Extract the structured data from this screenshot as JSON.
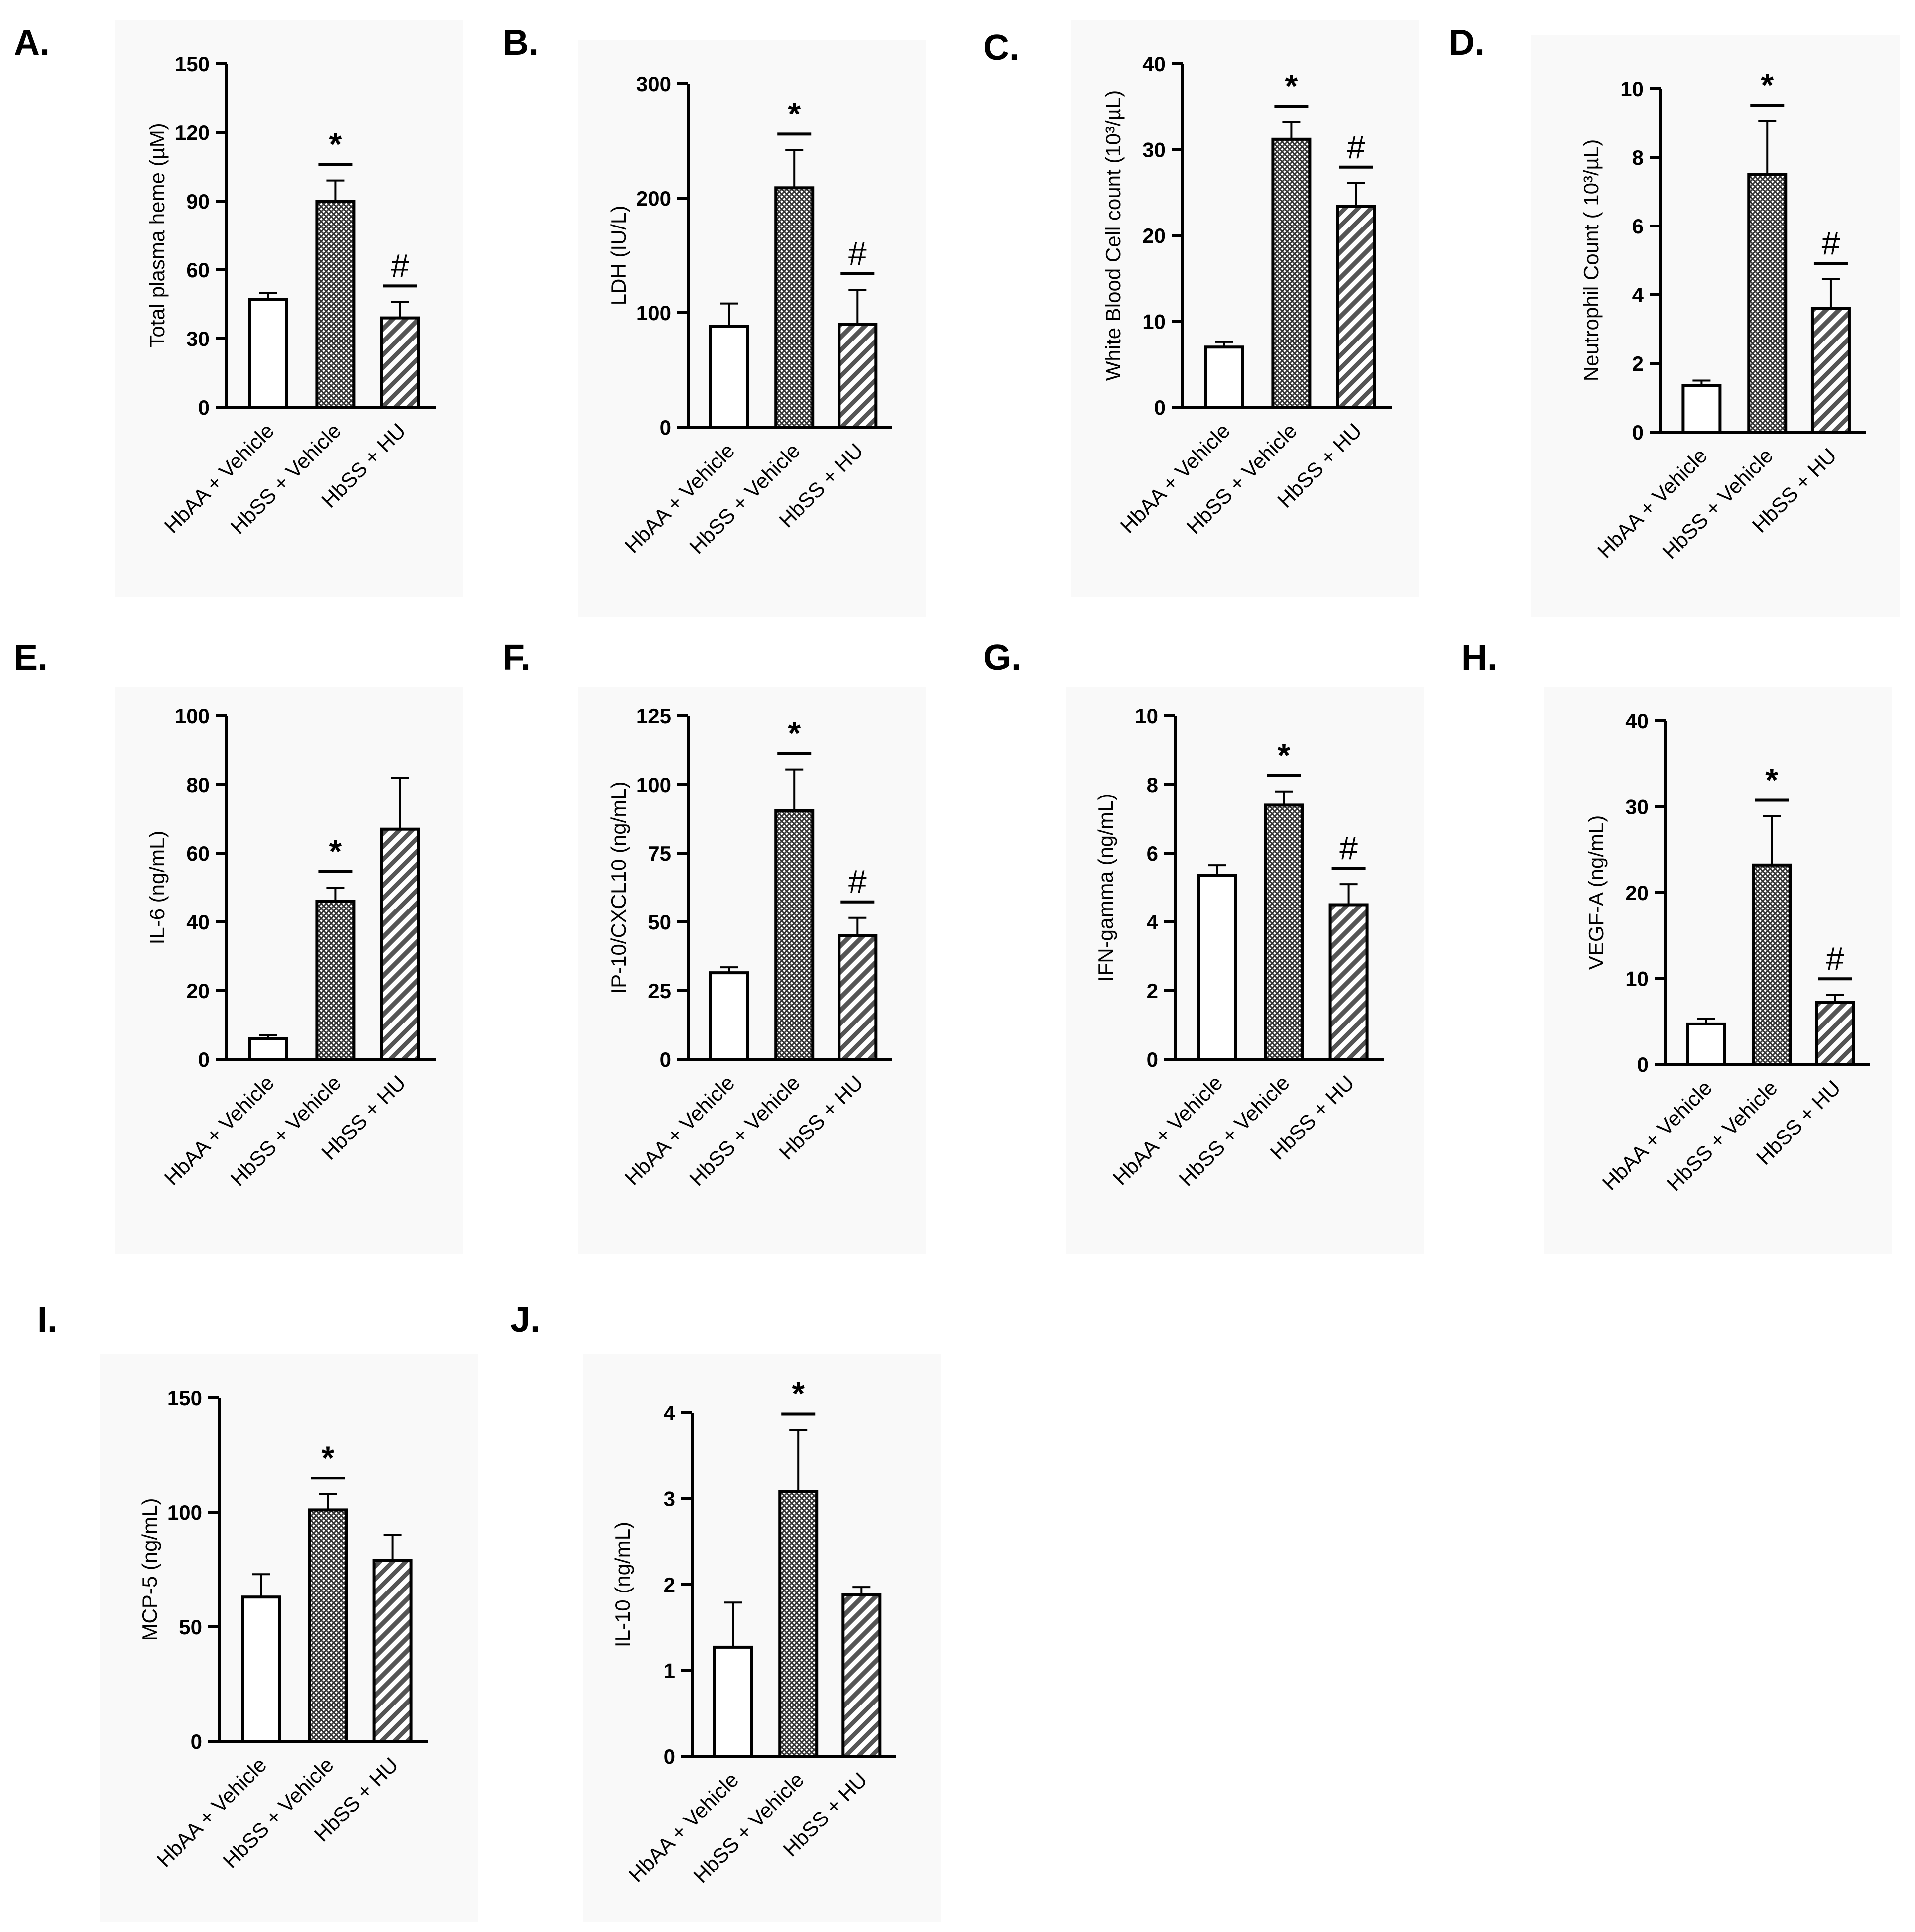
{
  "groups": [
    "HbAA + Vehicle",
    "HbSS + Vehicle",
    "HbSS + HU"
  ],
  "patterns": [
    "open",
    "crosshatch",
    "diagonal"
  ],
  "chart_data": [
    {
      "panel": "A.",
      "type": "bar",
      "ylabel": "Total plasma heme (µM)",
      "ylim": [
        0,
        150
      ],
      "yticks": [
        0,
        30,
        60,
        90,
        120,
        150
      ],
      "categories": [
        "HbAA + Vehicle",
        "HbSS + Vehicle",
        "HbSS + HU"
      ],
      "values": [
        47,
        90,
        39
      ],
      "errors": [
        3,
        9,
        7
      ],
      "significance": [
        "",
        "*",
        "#"
      ]
    },
    {
      "panel": "B.",
      "type": "bar",
      "ylabel": "LDH (IU/L)",
      "ylim": [
        0,
        300
      ],
      "yticks": [
        0,
        100,
        200,
        300
      ],
      "categories": [
        "HbAA + Vehicle",
        "HbSS + Vehicle",
        "HbSS + HU"
      ],
      "values": [
        88,
        209,
        90
      ],
      "errors": [
        20,
        33,
        30
      ],
      "significance": [
        "",
        "*",
        "#"
      ]
    },
    {
      "panel": "C.",
      "type": "bar",
      "ylabel": "White Blood Cell count (10³/µL)",
      "ylim": [
        0,
        40
      ],
      "yticks": [
        0,
        10,
        20,
        30,
        40
      ],
      "categories": [
        "HbAA + Vehicle",
        "HbSS + Vehicle",
        "HbSS + HU"
      ],
      "values": [
        7,
        31.2,
        23.4
      ],
      "errors": [
        0.6,
        2,
        2.7
      ],
      "significance": [
        "",
        "*",
        "#"
      ]
    },
    {
      "panel": "D.",
      "type": "bar",
      "ylabel": "Neutrophil Count ( 10³/µL)",
      "ylim": [
        0,
        10
      ],
      "yticks": [
        0,
        2,
        4,
        6,
        8,
        10
      ],
      "categories": [
        "HbAA + Vehicle",
        "HbSS + Vehicle",
        "HbSS + HU"
      ],
      "values": [
        1.35,
        7.5,
        3.6
      ],
      "errors": [
        0.15,
        1.55,
        0.85
      ],
      "significance": [
        "",
        "*",
        "#"
      ]
    },
    {
      "panel": "E.",
      "type": "bar",
      "ylabel": "IL-6 (ng/mL)",
      "ylim": [
        0,
        100
      ],
      "yticks": [
        0,
        20,
        40,
        60,
        80,
        100
      ],
      "categories": [
        "HbAA + Vehicle",
        "HbSS + Vehicle",
        "HbSS + HU"
      ],
      "values": [
        6,
        46,
        67
      ],
      "errors": [
        1,
        4,
        15
      ],
      "significance": [
        "",
        "*",
        ""
      ]
    },
    {
      "panel": "F.",
      "type": "bar",
      "ylabel": "IP-10/CXCL10 (ng/mL)",
      "ylim": [
        0,
        125
      ],
      "yticks": [
        0,
        25,
        50,
        75,
        100,
        125
      ],
      "categories": [
        "HbAA + Vehicle",
        "HbSS + Vehicle",
        "HbSS + HU"
      ],
      "values": [
        31.5,
        90.5,
        45
      ],
      "errors": [
        2,
        15,
        6.5
      ],
      "significance": [
        "",
        "*",
        "#"
      ]
    },
    {
      "panel": "G.",
      "type": "bar",
      "ylabel": "IFN-gamma (ng/mL)",
      "ylim": [
        0,
        10
      ],
      "yticks": [
        0,
        2,
        4,
        6,
        8,
        10
      ],
      "categories": [
        "HbAA + Vehicle",
        "HbSS + Vehicle",
        "HbSS + HU"
      ],
      "values": [
        5.35,
        7.4,
        4.5
      ],
      "errors": [
        0.3,
        0.4,
        0.6
      ],
      "significance": [
        "",
        "*",
        "#"
      ]
    },
    {
      "panel": "H.",
      "type": "bar",
      "ylabel": "VEGF-A (ng/mL)",
      "ylim": [
        0,
        40
      ],
      "yticks": [
        0,
        10,
        20,
        30,
        40
      ],
      "categories": [
        "HbAA + Vehicle",
        "HbSS + Vehicle",
        "HbSS + HU"
      ],
      "values": [
        4.7,
        23.2,
        7.2
      ],
      "errors": [
        0.6,
        5.7,
        0.9
      ],
      "significance": [
        "",
        "*",
        "#"
      ]
    },
    {
      "panel": "I.",
      "type": "bar",
      "ylabel": "MCP-5 (ng/mL)",
      "ylim": [
        0,
        150
      ],
      "yticks": [
        0,
        50,
        100,
        150
      ],
      "categories": [
        "HbAA + Vehicle",
        "HbSS + Vehicle",
        "HbSS + HU"
      ],
      "values": [
        63,
        101,
        79
      ],
      "errors": [
        10,
        7,
        11
      ],
      "significance": [
        "",
        "*",
        ""
      ]
    },
    {
      "panel": "J.",
      "type": "bar",
      "ylabel": "IL-10 (ng/mL)",
      "ylim": [
        0,
        4
      ],
      "yticks": [
        0,
        1,
        2,
        3,
        4
      ],
      "categories": [
        "HbAA + Vehicle",
        "HbSS + Vehicle",
        "HbSS + HU"
      ],
      "values": [
        1.27,
        3.08,
        1.88
      ],
      "errors": [
        0.52,
        0.72,
        0.09
      ],
      "significance": [
        "",
        "*",
        ""
      ]
    }
  ]
}
